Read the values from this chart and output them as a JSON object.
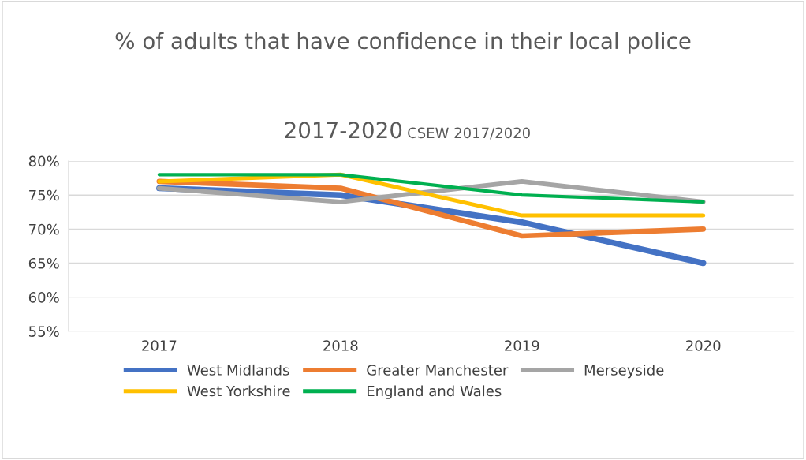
{
  "chart_data": {
    "type": "line",
    "title": "% of adults that have confidence in their local police",
    "subtitle": "2017-2020",
    "annotations": [
      "CSEW 2017/2020"
    ],
    "categories": [
      "2017",
      "2018",
      "2019",
      "2020"
    ],
    "series": [
      {
        "name": "West Midlands",
        "color": "#4472c4",
        "values": [
          76,
          75,
          71,
          65
        ]
      },
      {
        "name": "Greater Manchester",
        "color": "#ed7d31",
        "values": [
          77,
          76,
          69,
          70
        ]
      },
      {
        "name": "Merseyside",
        "color": "#a5a5a5",
        "values": [
          76,
          74,
          77,
          74
        ]
      },
      {
        "name": "West Yorkshire",
        "color": "#ffc000",
        "values": [
          77,
          78,
          72,
          72
        ]
      },
      {
        "name": "England and Wales",
        "color": "#00b050",
        "values": [
          78,
          78,
          75,
          74
        ]
      }
    ],
    "ylim": [
      55,
      80
    ],
    "yticks": [
      {
        "value": 55,
        "label": "55%"
      },
      {
        "value": 60,
        "label": "60%"
      },
      {
        "value": 65,
        "label": "65%"
      },
      {
        "value": 70,
        "label": "70%"
      },
      {
        "value": 75,
        "label": "75%"
      },
      {
        "value": 80,
        "label": "80%"
      }
    ],
    "grid": "y",
    "legend": "bottom",
    "marker": "none",
    "line_style": "solid"
  }
}
